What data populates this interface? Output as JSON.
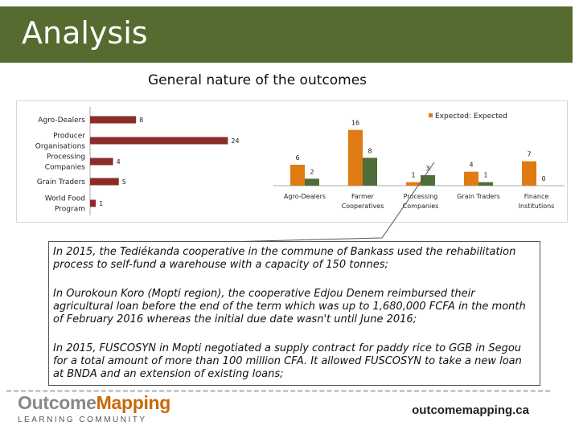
{
  "slide": {
    "title": "Analysis",
    "heading": "General nature of the outcomes"
  },
  "chart_data": [
    {
      "type": "bar",
      "orientation": "horizontal",
      "categories": [
        "Agro-Dealers",
        "Producer Organisations",
        "Processing Companies",
        "Grain Traders",
        "World Food Program"
      ],
      "category_lines": [
        [
          "Agro-Dealers"
        ],
        [
          "Producer",
          "Organisations"
        ],
        [
          "Processing",
          "Companies"
        ],
        [
          "Grain Traders"
        ],
        [
          "World Food",
          "Program"
        ]
      ],
      "values": [
        8,
        24,
        4,
        5,
        1
      ],
      "color": "#8b2c28",
      "xlim": [
        0,
        28
      ]
    },
    {
      "type": "bar",
      "categories": [
        "Agro-Dealers",
        "Farmer Cooperatives",
        "Processing Companies",
        "Grain Traders",
        "Finance Institutions"
      ],
      "category_lines": [
        [
          "Agro-Dealers"
        ],
        [
          "Farmer",
          "Cooperatives"
        ],
        [
          "Processing",
          "Companies"
        ],
        [
          "Grain Traders"
        ],
        [
          "Finance",
          "Institutions"
        ]
      ],
      "series": [
        {
          "name": "Expected: Expected",
          "color": "#e07b14",
          "values": [
            6,
            16,
            1,
            4,
            7
          ]
        },
        {
          "color": "#4e6e3a",
          "values": [
            2,
            8,
            3,
            1,
            0
          ]
        }
      ],
      "ylim": [
        0,
        18
      ]
    }
  ],
  "legend": {
    "label": "Expected: Expected",
    "color": "#e07b14"
  },
  "paragraphs": [
    "In 2015, the Tediékanda cooperative in the commune of Bankass used the rehabilitation process to self-fund a warehouse with a capacity of 150 tonnes;",
    "In Ourokoun Koro (Mopti region), the cooperative Edjou Denem reimbursed their agricultural loan before the end of the term which was up to 1,680,000 FCFA in the month of February 2016 whereas the initial due date wasn't until June 2016;",
    "In 2015, FUSCOSYN in Mopti negotiated a supply contract for paddy rice to GGB in Segou for a total amount of more than 100 million CFA. It allowed FUSCOSYN to take a new loan at BNDA and an extension of existing loans;"
  ],
  "footer": {
    "logo_part1": "Outcome",
    "logo_part2": "Mapping",
    "logo_sub": "LEARNING COMMUNITY",
    "site": "outcomemapping.ca"
  },
  "colors": {
    "title_bar": "#556b2f",
    "accent": "#c8690a"
  }
}
